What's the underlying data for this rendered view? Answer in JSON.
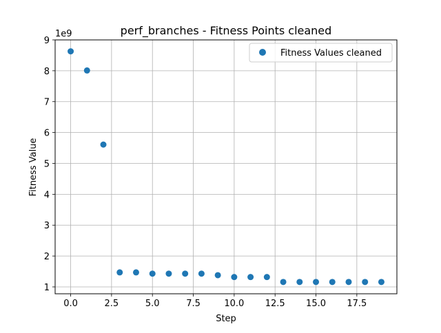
{
  "chart_data": {
    "type": "scatter",
    "title": "perf_branches - Fitness Points cleaned",
    "xlabel": "Step",
    "ylabel": "Fitness Value",
    "y_multiplier_label": "1e9",
    "xlim": [
      -0.95,
      19.95
    ],
    "ylim": [
      0.777,
      9.0
    ],
    "x_ticks": [
      0.0,
      2.5,
      5.0,
      7.5,
      10.0,
      12.5,
      15.0,
      17.5
    ],
    "x_tick_labels": [
      "0.0",
      "2.5",
      "5.0",
      "7.5",
      "10.0",
      "12.5",
      "15.0",
      "17.5"
    ],
    "y_ticks": [
      1,
      2,
      3,
      4,
      5,
      6,
      7,
      8,
      9
    ],
    "y_tick_labels": [
      "1",
      "2",
      "3",
      "4",
      "5",
      "6",
      "7",
      "8",
      "9"
    ],
    "grid": true,
    "legend_position": "top-right",
    "series": [
      {
        "name": "Fitness Values cleaned",
        "color": "#1f77b4",
        "x": [
          0,
          1,
          2,
          3,
          4,
          5,
          6,
          7,
          8,
          9,
          10,
          11,
          12,
          13,
          14,
          15,
          16,
          17,
          18,
          19
        ],
        "y": [
          8.63,
          8.01,
          5.61,
          1.47,
          1.47,
          1.43,
          1.43,
          1.43,
          1.43,
          1.38,
          1.32,
          1.32,
          1.32,
          1.16,
          1.16,
          1.16,
          1.16,
          1.16,
          1.16,
          1.16
        ]
      }
    ]
  }
}
